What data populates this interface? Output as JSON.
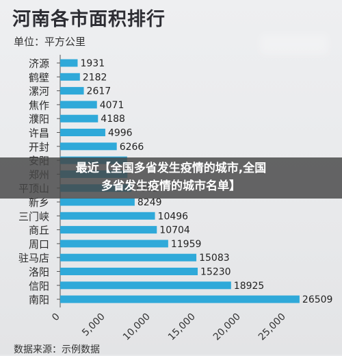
{
  "title": "河南各市面积排行",
  "unit": "单位：平方公里",
  "source": "数据来源：示例数据",
  "overlay": {
    "line1": "最近【全国多省发生疫情的城市,全国",
    "line2": "多省发生疫情的城市名单】"
  },
  "colors": {
    "bar": "#2fa9d9",
    "axis": "#555555",
    "overlay": "#464646"
  },
  "chart_data": {
    "type": "bar",
    "orientation": "horizontal",
    "title": "河南各市面积排行",
    "unit": "单位：平方公里",
    "categories": [
      "济源",
      "鹤壁",
      "漯河",
      "焦作",
      "濮阳",
      "许昌",
      "开封",
      "安阳",
      "郑州",
      "平顶山",
      "新乡",
      "三门峡",
      "商丘",
      "周口",
      "驻马店",
      "洛阳",
      "信阳",
      "南阳"
    ],
    "values": [
      1931,
      2182,
      2617,
      4071,
      4188,
      4996,
      6266,
      7413,
      7446,
      7882,
      8249,
      10496,
      10704,
      11959,
      15083,
      15230,
      18925,
      26509
    ],
    "visible_value_labels": [
      "1931",
      "2182",
      "2617",
      "4071",
      "4188",
      "4996",
      "6266",
      "",
      "",
      "7882",
      "8249",
      "10496",
      "10704",
      "11959",
      "15083",
      "15230",
      "18925",
      "26509"
    ],
    "x_ticks": [
      "0",
      "5,000",
      "10,000",
      "15,000",
      "20,000",
      "25,000"
    ],
    "x_tick_values": [
      0,
      5000,
      10000,
      15000,
      20000,
      25000
    ],
    "xlim": [
      0,
      27000
    ],
    "grid": false,
    "legend": "none"
  }
}
